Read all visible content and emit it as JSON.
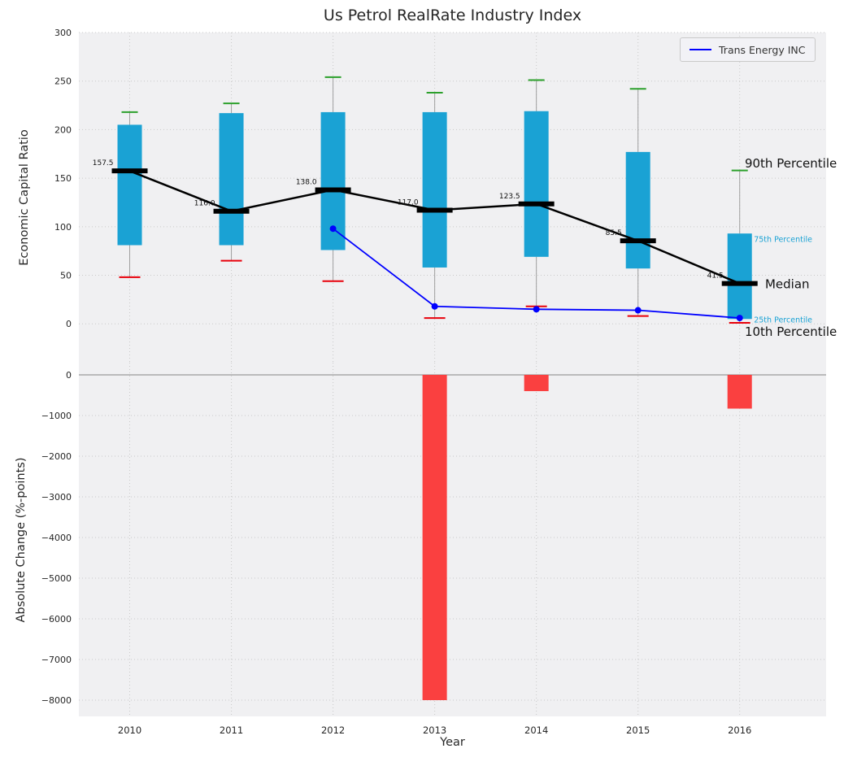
{
  "figure": {
    "title": "Us Petrol RealRate Industry Index"
  },
  "chart_data": [
    {
      "type": "boxplot",
      "title": "Us Petrol RealRate Industry Index",
      "ylabel": "Economic Capital Ratio",
      "xlabel": "",
      "ylim": [
        -40,
        300
      ],
      "yticks": [
        300,
        250,
        200,
        150,
        100,
        50,
        0
      ],
      "categories": [
        2010,
        2011,
        2012,
        2013,
        2014,
        2015,
        2016
      ],
      "grid": true,
      "legend_position": "upper right",
      "boxes": [
        {
          "year": 2010,
          "p10": 48,
          "p25": 81,
          "median": 157.5,
          "p75": 205,
          "p90": 218,
          "label": "157.5"
        },
        {
          "year": 2011,
          "p10": 65,
          "p25": 81,
          "median": 116.0,
          "p75": 217,
          "p90": 227,
          "label": "116.0"
        },
        {
          "year": 2012,
          "p10": 44,
          "p25": 76,
          "median": 138.0,
          "p75": 218,
          "p90": 254,
          "label": "138.0"
        },
        {
          "year": 2013,
          "p10": 6,
          "p25": 58,
          "median": 117.0,
          "p75": 218,
          "p90": 238,
          "label": "117.0"
        },
        {
          "year": 2014,
          "p10": 18,
          "p25": 69,
          "median": 123.5,
          "p75": 219,
          "p90": 251,
          "label": "123.5"
        },
        {
          "year": 2015,
          "p10": 8,
          "p25": 57,
          "median": 85.5,
          "p75": 177,
          "p90": 242,
          "label": "85.5"
        },
        {
          "year": 2016,
          "p10": 1,
          "p25": 5,
          "median": 41.5,
          "p75": 93,
          "p90": 158,
          "label": "41.5"
        }
      ],
      "series": [
        {
          "name": "Trans Energy INC",
          "color": "#0000ff",
          "x": [
            2012,
            2013,
            2014,
            2015,
            2016
          ],
          "values": [
            98,
            18,
            15,
            14,
            6
          ]
        }
      ],
      "annotations": [
        {
          "text": "90th Percentile",
          "x": 2016.05,
          "y": 165,
          "style": "large"
        },
        {
          "text": "75th Percentile",
          "x": 2016.14,
          "y": 87,
          "style": "small"
        },
        {
          "text": "Median",
          "x": 2016.25,
          "y": 41,
          "style": "large"
        },
        {
          "text": "25th Percentile",
          "x": 2016.14,
          "y": 4,
          "style": "small"
        },
        {
          "text": "10th Percentile",
          "x": 2016.05,
          "y": -8,
          "style": "large"
        }
      ],
      "colors": {
        "box": "#1aa2d4",
        "p90_cap": "#2ca02c",
        "p10_cap": "#e8000b",
        "median": "#000000",
        "whisker": "#a0a0a0"
      }
    },
    {
      "type": "bar",
      "ylabel": "Absolute Change (%-points)",
      "xlabel": "Year",
      "ylim": [
        -8400,
        300
      ],
      "yticks": [
        0,
        -1000,
        -2000,
        -3000,
        -4000,
        -5000,
        -6000,
        -7000,
        -8000
      ],
      "categories": [
        2010,
        2011,
        2012,
        2013,
        2014,
        2015,
        2016
      ],
      "values": [
        0,
        0,
        0,
        -8000,
        -400,
        0,
        -830
      ],
      "bar_color": "#fa4040",
      "zero_line": true
    }
  ]
}
